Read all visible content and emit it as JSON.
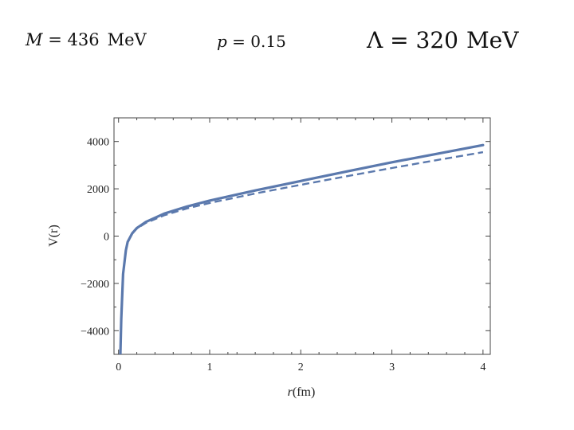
{
  "params": {
    "mass": {
      "symbol": "M",
      "value": "436",
      "unit": "MeV"
    },
    "p": {
      "symbol": "p",
      "value": "0.15"
    },
    "lambda": {
      "symbol": "Λ",
      "value": "320",
      "unit": "MeV"
    }
  },
  "chart_data": {
    "type": "line",
    "title": "",
    "xlabel_symbol": "r",
    "xlabel_unit": "(fm)",
    "ylabel": "V(r)",
    "xlim": [
      -0.05,
      4.08
    ],
    "ylim": [
      -5000,
      5000
    ],
    "xticks": [
      0,
      1,
      2,
      3,
      4
    ],
    "yticks": [
      -4000,
      -2000,
      0,
      2000,
      4000
    ],
    "ytick_labels": [
      "−4000",
      "−2000",
      "0",
      "2000",
      "4000"
    ],
    "grid": false,
    "legend": "none",
    "series": [
      {
        "style": "solid",
        "color": "#5b79ad",
        "x": [
          0.02,
          0.03,
          0.05,
          0.08,
          0.1,
          0.15,
          0.2,
          0.3,
          0.5,
          0.75,
          1.0,
          1.5,
          2.0,
          2.5,
          3.0,
          3.5,
          4.0
        ],
        "y": [
          -5000,
          -3500,
          -1600,
          -600,
          -250,
          120,
          340,
          600,
          950,
          1250,
          1500,
          1930,
          2330,
          2730,
          3120,
          3480,
          3850
        ]
      },
      {
        "style": "dashed",
        "color": "#5b79ad",
        "x": [
          0.02,
          0.03,
          0.05,
          0.08,
          0.1,
          0.15,
          0.2,
          0.3,
          0.5,
          0.75,
          1.0,
          1.5,
          2.0,
          2.5,
          3.0,
          3.5,
          4.0
        ],
        "y": [
          -5000,
          -3500,
          -1600,
          -600,
          -250,
          110,
          320,
          560,
          880,
          1170,
          1400,
          1800,
          2170,
          2530,
          2880,
          3220,
          3550
        ]
      }
    ]
  }
}
